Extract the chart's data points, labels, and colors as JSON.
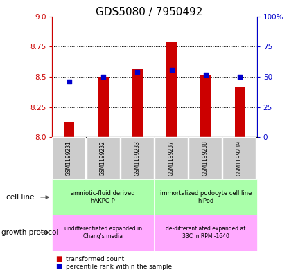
{
  "title": "GDS5080 / 7950492",
  "samples": [
    "GSM1199231",
    "GSM1199232",
    "GSM1199233",
    "GSM1199237",
    "GSM1199238",
    "GSM1199239"
  ],
  "transformed_count": [
    8.13,
    8.5,
    8.57,
    8.79,
    8.52,
    8.42
  ],
  "percentile_rank": [
    46,
    50,
    54,
    56,
    52,
    50
  ],
  "ylim_left": [
    8.0,
    9.0
  ],
  "ylim_right": [
    0,
    100
  ],
  "yticks_left": [
    8.0,
    8.25,
    8.5,
    8.75,
    9.0
  ],
  "yticks_right": [
    0,
    25,
    50,
    75,
    100
  ],
  "bar_color": "#cc0000",
  "dot_color": "#0000cc",
  "bar_width": 0.3,
  "cell_line_label1": "amniotic-fluid derived\nhAKPC-P",
  "cell_line_label2": "immortalized podocyte cell line\nhIPod",
  "growth_protocol_label1": "undifferentiated expanded in\nChang's media",
  "growth_protocol_label2": "de-differentiated expanded at\n33C in RPMI-1640",
  "cell_line_color": "#aaffaa",
  "growth_protocol_color": "#ffaaff",
  "sample_label_color": "#cccccc",
  "legend_labels": [
    "transformed count",
    "percentile rank within the sample"
  ],
  "legend_colors": [
    "#cc0000",
    "#0000cc"
  ],
  "left_axis_color": "#cc0000",
  "right_axis_color": "#0000cc",
  "cell_line_row_label": "cell line",
  "growth_protocol_row_label": "growth protocol",
  "title_fontsize": 11
}
